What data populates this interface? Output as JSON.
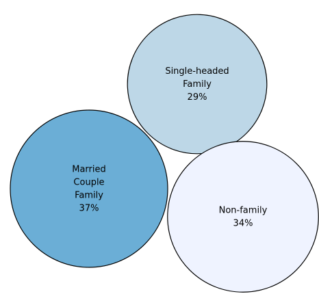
{
  "chart_data": {
    "type": "bubble",
    "title": "",
    "categories": [
      "Single-headed Family",
      "Married Couple Family",
      "Non-family"
    ],
    "values": [
      29,
      37,
      34
    ],
    "unit": "%",
    "items": [
      {
        "name": "Single-headed Family",
        "label_lines": [
          "Single-headed",
          "Family",
          "29%"
        ],
        "value": 29,
        "color": "#bdd7e7"
      },
      {
        "name": "Married Couple Family",
        "label_lines": [
          "Married",
          "Couple",
          "Family",
          "37%"
        ],
        "value": 37,
        "color": "#6baed6"
      },
      {
        "name": "Non-family",
        "label_lines": [
          "Non-family",
          "34%"
        ],
        "value": 34,
        "color": "#eff3ff"
      }
    ]
  }
}
